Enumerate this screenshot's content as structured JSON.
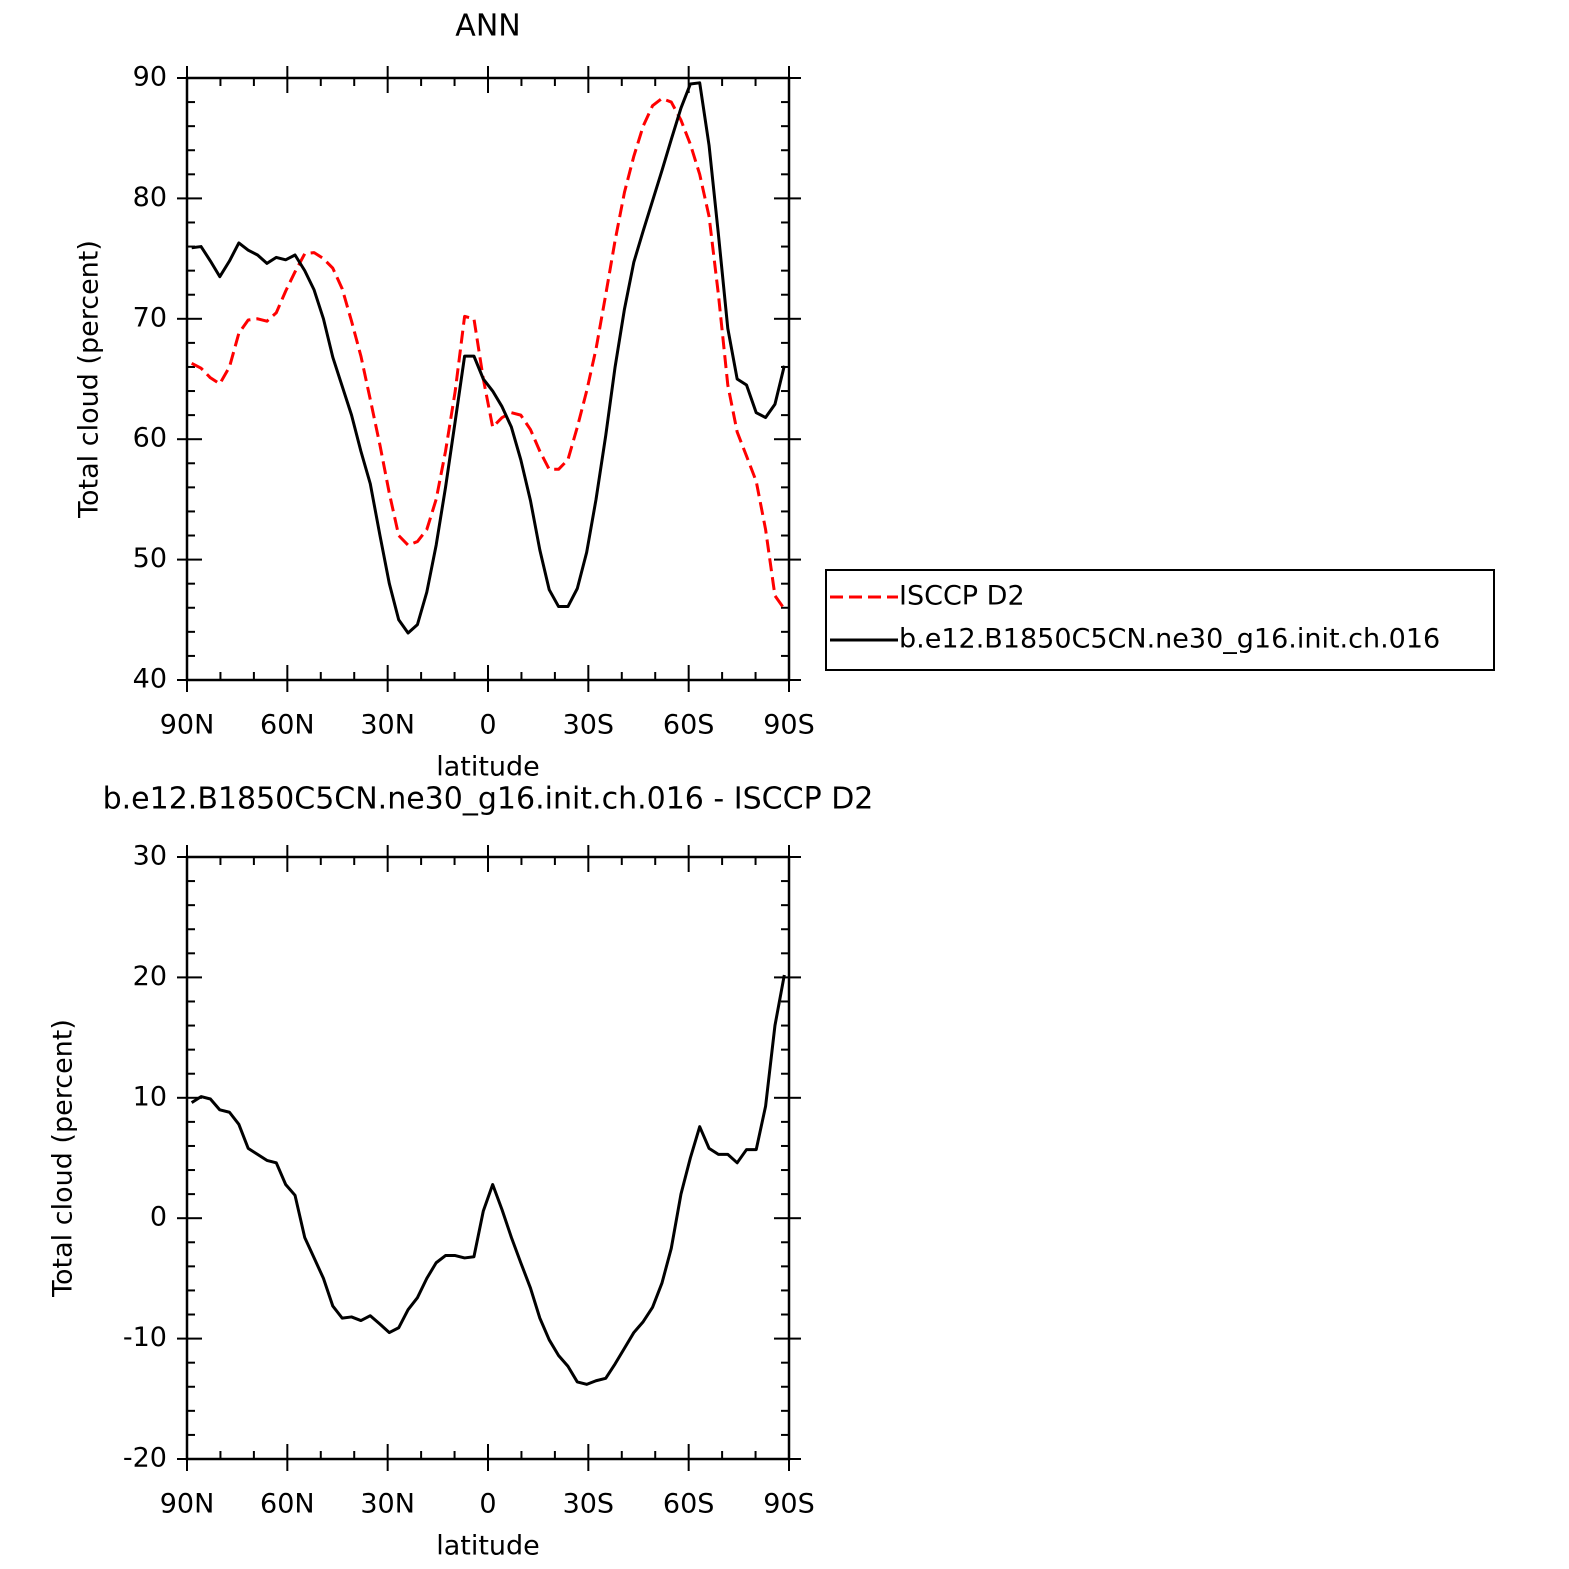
{
  "chart_data": [
    {
      "type": "line",
      "title": "ANN",
      "xlabel": "latitude",
      "ylabel": "Total cloud (percent)",
      "x": [
        88.6,
        85.8,
        83.0,
        80.2,
        77.3,
        74.5,
        71.7,
        68.9,
        66.1,
        63.3,
        60.5,
        57.7,
        54.8,
        52.0,
        49.2,
        46.4,
        43.6,
        40.8,
        38.0,
        35.2,
        32.3,
        29.5,
        26.7,
        23.9,
        21.1,
        18.3,
        15.5,
        12.7,
        9.8,
        7.0,
        4.2,
        1.4,
        -1.4,
        -4.2,
        -7.0,
        -9.8,
        -12.7,
        -15.5,
        -18.3,
        -21.1,
        -23.9,
        -26.7,
        -29.5,
        -32.3,
        -35.2,
        -38.0,
        -40.8,
        -43.6,
        -46.4,
        -49.2,
        -52.0,
        -54.8,
        -57.7,
        -60.5,
        -63.3,
        -66.1,
        -68.9,
        -71.7,
        -74.5,
        -77.3,
        -80.2,
        -83.0,
        -85.8,
        -88.6
      ],
      "series": [
        {
          "name": "ISCCP D2",
          "color": "#ff0000",
          "line_style": "dashed",
          "values": [
            66.3,
            65.9,
            65.1,
            64.6,
            66,
            68.8,
            69.9,
            70,
            69.8,
            70.5,
            72.3,
            73.9,
            75.4,
            75.5,
            75,
            74.2,
            72.5,
            69.8,
            66.9,
            63.3,
            59.5,
            55.5,
            52,
            51.2,
            51.5,
            52.5,
            55,
            59,
            64,
            70.2,
            70,
            65,
            61,
            61.8,
            62.2,
            62,
            60.8,
            59,
            57.5,
            57.5,
            58.3,
            61,
            64,
            67.5,
            72,
            76.5,
            80.5,
            83.5,
            86,
            87.7,
            88.3,
            88,
            86.5,
            84.5,
            82,
            78.5,
            72,
            64.5,
            60.6,
            58.6,
            56.5,
            52.5,
            47,
            45.9
          ]
        },
        {
          "name": "b.e12.B1850C5CN.ne30_g16.init.ch.016",
          "color": "#000000",
          "line_style": "solid",
          "values": [
            75.9,
            76,
            74.8,
            73.5,
            74.8,
            76.3,
            75.7,
            75.3,
            74.6,
            75.1,
            74.9,
            75.3,
            74,
            72.4,
            70,
            66.8,
            64.4,
            62,
            59,
            56.3,
            52,
            48,
            45,
            43.9,
            44.6,
            47.3,
            51.2,
            56,
            61.5,
            66.9,
            66.9,
            65,
            64,
            62.7,
            61,
            58.3,
            54.9,
            50.8,
            47.5,
            46.1,
            46.1,
            47.6,
            50.6,
            55,
            60.3,
            66,
            70.8,
            74.7,
            77.3,
            79.8,
            82.3,
            84.9,
            87.5,
            89.5,
            89.6,
            84.4,
            77,
            69.2,
            65,
            64.5,
            62.2,
            61.8,
            62.9,
            66.1
          ]
        }
      ],
      "xlim": [
        90,
        -90
      ],
      "xticks": [
        {
          "value": 90,
          "label": "90N"
        },
        {
          "value": 60,
          "label": "60N"
        },
        {
          "value": 30,
          "label": "30N"
        },
        0,
        {
          "value": -30,
          "label": "30S"
        },
        {
          "value": -60,
          "label": "60S"
        },
        {
          "value": -90,
          "label": "90S"
        }
      ],
      "ylim": [
        40,
        90
      ],
      "yticks": [
        40,
        50,
        60,
        70,
        80,
        90
      ],
      "legend": "right"
    },
    {
      "type": "line",
      "title": "b.e12.B1850C5CN.ne30_g16.init.ch.016 - ISCCP D2",
      "xlabel": "latitude",
      "ylabel": "Total cloud (percent)",
      "x": [
        88.6,
        85.8,
        83.0,
        80.2,
        77.3,
        74.5,
        71.7,
        68.9,
        66.1,
        63.3,
        60.5,
        57.7,
        54.8,
        52.0,
        49.2,
        46.4,
        43.6,
        40.8,
        38.0,
        35.2,
        32.3,
        29.5,
        26.7,
        23.9,
        21.1,
        18.3,
        15.5,
        12.7,
        9.8,
        7.0,
        4.2,
        1.4,
        -1.4,
        -4.2,
        -7.0,
        -9.8,
        -12.7,
        -15.5,
        -18.3,
        -21.1,
        -23.9,
        -26.7,
        -29.5,
        -32.3,
        -35.2,
        -38.0,
        -40.8,
        -43.6,
        -46.4,
        -49.2,
        -52.0,
        -54.8,
        -57.7,
        -60.5,
        -63.3,
        -66.1,
        -68.9,
        -71.7,
        -74.5,
        -77.3,
        -80.2,
        -83.0,
        -85.8,
        -88.6
      ],
      "series": [
        {
          "color": "#000000",
          "line_style": "solid",
          "values": [
            9.6,
            10.1,
            9.9,
            9,
            8.8,
            7.8,
            5.8,
            5.3,
            4.8,
            4.6,
            2.8,
            1.9,
            -1.6,
            -3.3,
            -5,
            -7.3,
            -8.3,
            -8.2,
            -8.5,
            -8.1,
            -8.8,
            -9.5,
            -9.1,
            -7.6,
            -6.6,
            -5,
            -3.7,
            -3.1,
            -3.1,
            -3.3,
            -3.2,
            0.6,
            2.8,
            0.7,
            -1.6,
            -3.7,
            -5.8,
            -8.3,
            -10.1,
            -11.4,
            -12.3,
            -13.6,
            -13.8,
            -13.5,
            -13.3,
            -12.1,
            -10.8,
            -9.5,
            -8.6,
            -7.4,
            -5.4,
            -2.5,
            2,
            5,
            7.6,
            5.8,
            5.3,
            5.3,
            4.6,
            5.7,
            5.7,
            9.3,
            16,
            20.2
          ]
        }
      ],
      "xlim": [
        90,
        -90
      ],
      "xticks": [
        {
          "value": 90,
          "label": "90N"
        },
        {
          "value": 60,
          "label": "60N"
        },
        {
          "value": 30,
          "label": "30N"
        },
        0,
        {
          "value": -30,
          "label": "30S"
        },
        {
          "value": -60,
          "label": "60S"
        },
        {
          "value": -90,
          "label": "90S"
        }
      ],
      "ylim": [
        -20,
        30
      ],
      "yticks": [
        -20,
        -10,
        0,
        10,
        20,
        30
      ]
    }
  ]
}
